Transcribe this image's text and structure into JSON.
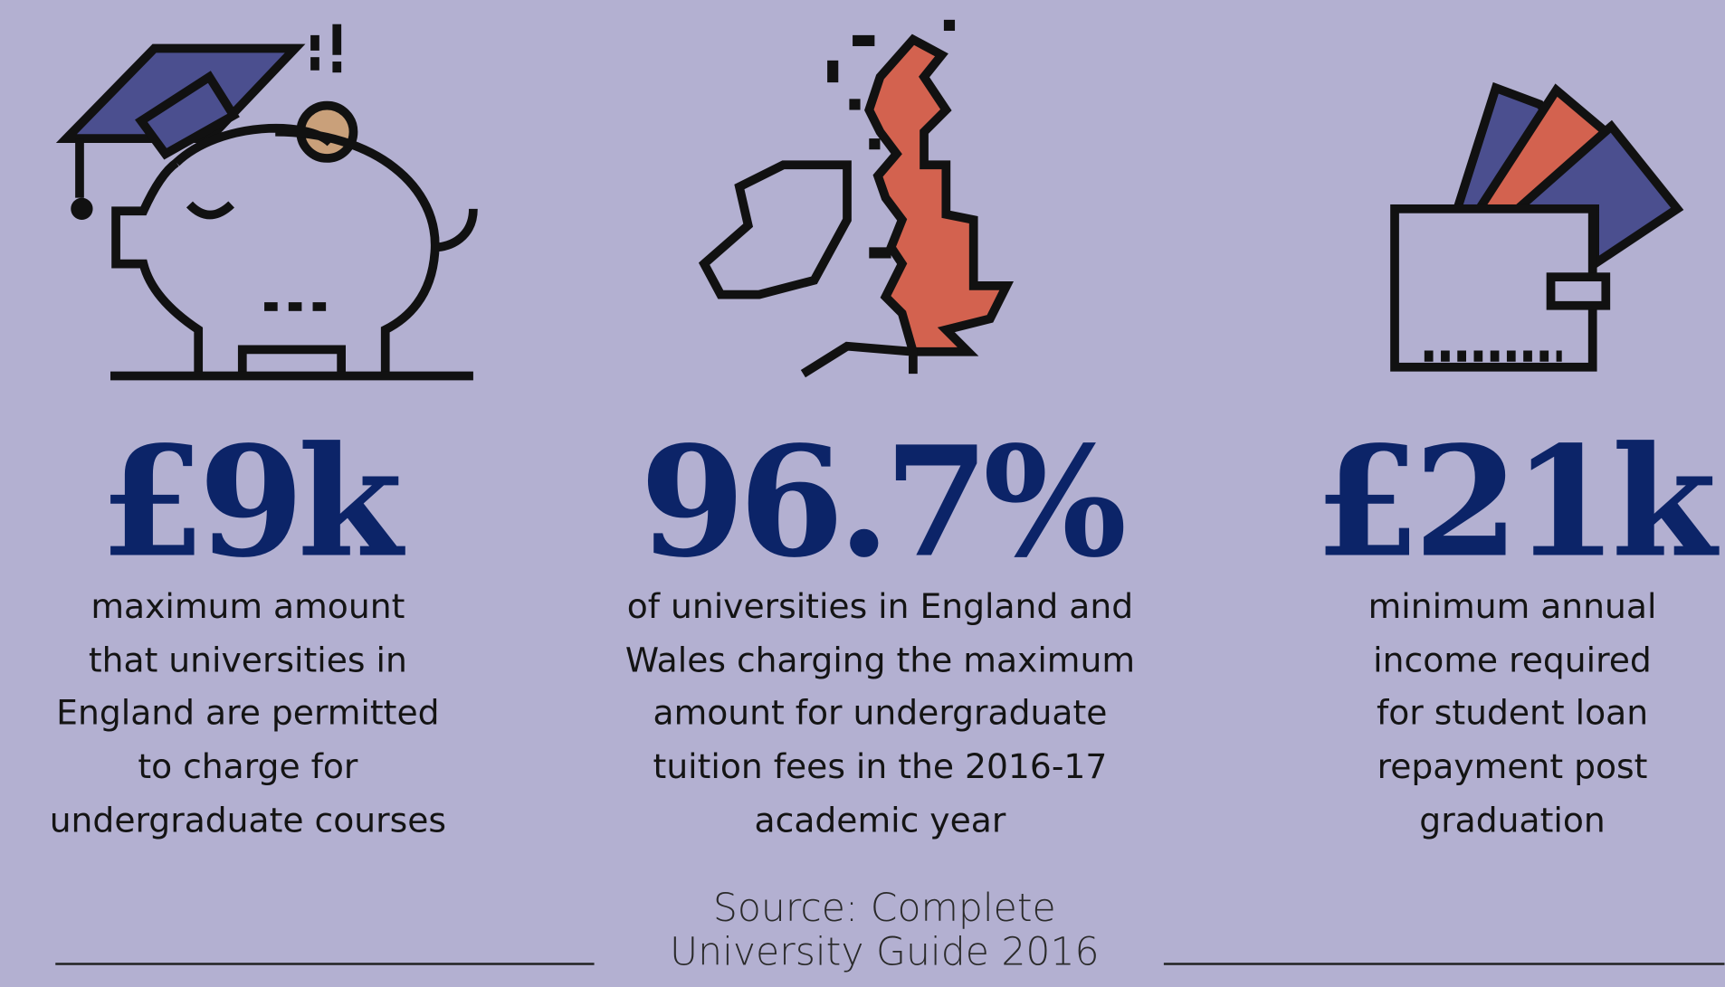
{
  "stats": [
    {
      "figure": "£9k",
      "description": [
        "maximum amount",
        "that universities in",
        "England are permitted",
        "to charge for",
        "undergraduate courses"
      ]
    },
    {
      "figure": "96.7%",
      "description": [
        "of universities in England and",
        "Wales charging the maximum",
        "amount for undergraduate",
        "tuition fees in the 2016-17",
        "academic year"
      ]
    },
    {
      "figure": "£21k",
      "description": [
        "minimum annual",
        "income required",
        "for student loan",
        "repayment post",
        "graduation"
      ]
    }
  ],
  "source": [
    "Source: Complete",
    "University Guide 2016"
  ]
}
